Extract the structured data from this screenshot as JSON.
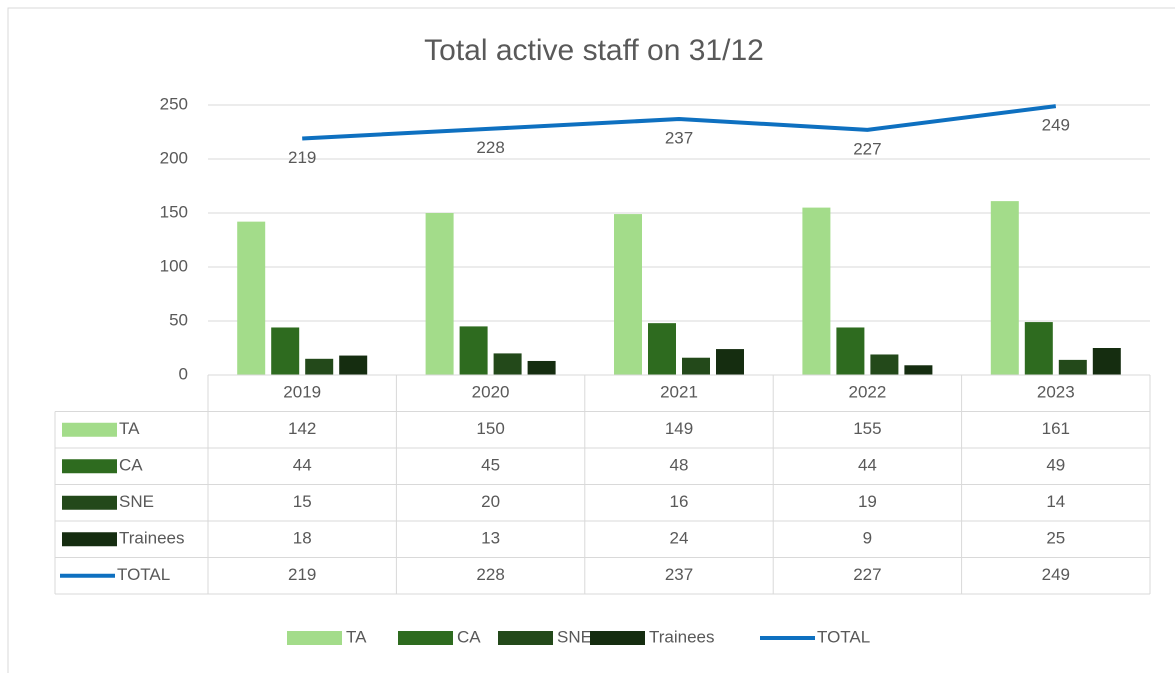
{
  "chart_data": {
    "type": "bar",
    "title": "Total active staff on 31/12",
    "categories": [
      "2019",
      "2020",
      "2021",
      "2022",
      "2023"
    ],
    "series": [
      {
        "name": "TA",
        "color": "#a3dc8a",
        "values": [
          142,
          150,
          149,
          155,
          161
        ]
      },
      {
        "name": "CA",
        "color": "#2e6b1f",
        "values": [
          44,
          45,
          48,
          44,
          49
        ]
      },
      {
        "name": "SNE",
        "color": "#23491a",
        "values": [
          15,
          20,
          16,
          19,
          14
        ]
      },
      {
        "name": "Trainees",
        "color": "#152d10",
        "values": [
          18,
          13,
          24,
          9,
          25
        ]
      },
      {
        "name": "TOTAL",
        "color": "#0e70c0",
        "type": "line",
        "values": [
          219,
          228,
          237,
          227,
          249
        ]
      }
    ],
    "ylim": [
      0,
      250
    ],
    "yticks": [
      0,
      50,
      100,
      150,
      200,
      250
    ],
    "grid": true,
    "legend": "bottom",
    "data_table": true
  }
}
